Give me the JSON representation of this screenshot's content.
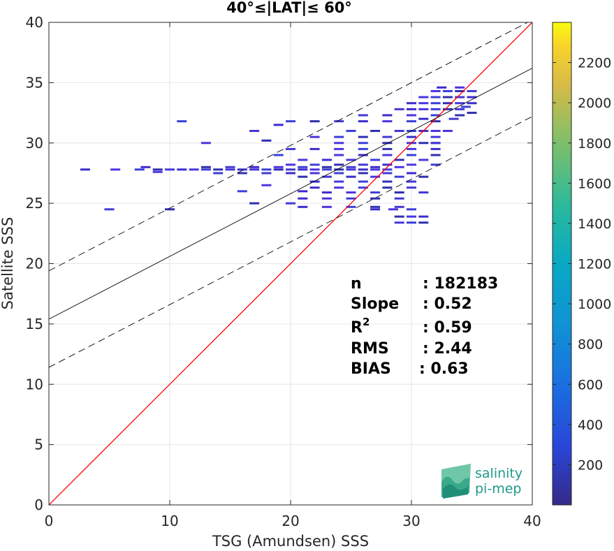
{
  "chart_data": {
    "type": "scatter",
    "title": "40°≤|LAT|≤ 60°",
    "xlabel": "TSG (Amundsen) SSS",
    "ylabel": "Satellite SSS",
    "xlim": [
      0,
      40
    ],
    "ylim": [
      0,
      40
    ],
    "xticks": [
      "0",
      "10",
      "20",
      "30",
      "40"
    ],
    "yticks": [
      "0",
      "5",
      "10",
      "15",
      "20",
      "25",
      "30",
      "35",
      "40"
    ],
    "grid": true,
    "colorbar": {
      "range": [
        0,
        2400
      ],
      "ticks": [
        "200",
        "400",
        "600",
        "800",
        "1000",
        "1200",
        "1400",
        "1600",
        "1800",
        "2000",
        "2200"
      ],
      "colormap": "parula"
    },
    "lines": [
      {
        "role": "identity",
        "color": "#ff0000",
        "slope": 1,
        "intercept": 0
      },
      {
        "role": "regression fit",
        "color": "#000000",
        "slope": 0.52,
        "intercept": 15.4
      },
      {
        "role": "upper bound",
        "color": "#000000",
        "style": "dashed",
        "slope": 0.52,
        "intercept": 19.4
      },
      {
        "role": "lower bound",
        "color": "#000000",
        "style": "dashed",
        "slope": 0.52,
        "intercept": 11.4
      }
    ],
    "stats": [
      {
        "label": "n",
        "value": ": 182183"
      },
      {
        "label": "Slope",
        "value": ": 0.52"
      },
      {
        "label": "R",
        "sup": "2",
        "value": ": 0.59"
      },
      {
        "label": "RMS",
        "value": ": 2.44"
      },
      {
        "label": "BIAS",
        "value": ": 0.63"
      }
    ],
    "points": [
      [
        3,
        27.8
      ],
      [
        5.5,
        27.8
      ],
      [
        7.5,
        27.8
      ],
      [
        9,
        27.8
      ],
      [
        10,
        27.8
      ],
      [
        11,
        27.8
      ],
      [
        12,
        27.8
      ],
      [
        13,
        27.8
      ],
      [
        14,
        27.8
      ],
      [
        15,
        27.8
      ],
      [
        16,
        27.8
      ],
      [
        17,
        27.8
      ],
      [
        18,
        27.8
      ],
      [
        19,
        27.8
      ],
      [
        20,
        27.8
      ],
      [
        21,
        27.8
      ],
      [
        22,
        27.8
      ],
      [
        23,
        27.8
      ],
      [
        24,
        27.8
      ],
      [
        25,
        27.8
      ],
      [
        26,
        27.8
      ],
      [
        27,
        27.8
      ],
      [
        28,
        27.8
      ],
      [
        13,
        28
      ],
      [
        15,
        28
      ],
      [
        17,
        28
      ],
      [
        19,
        28
      ],
      [
        21,
        28
      ],
      [
        23,
        28
      ],
      [
        25,
        28
      ],
      [
        27,
        28
      ],
      [
        29,
        28
      ],
      [
        14,
        27.5
      ],
      [
        16,
        27.5
      ],
      [
        18,
        27.5
      ],
      [
        20,
        27.5
      ],
      [
        22,
        27.5
      ],
      [
        24,
        27.5
      ],
      [
        26,
        27.5
      ],
      [
        28,
        27.5
      ],
      [
        30,
        27.5
      ],
      [
        20,
        28.2
      ],
      [
        22,
        28.2
      ],
      [
        24,
        28.2
      ],
      [
        26,
        28.2
      ],
      [
        28,
        28.2
      ],
      [
        30,
        28.2
      ],
      [
        32,
        28.2
      ],
      [
        21,
        27.2
      ],
      [
        23,
        27.2
      ],
      [
        25,
        27.2
      ],
      [
        27,
        27.2
      ],
      [
        29,
        27.2
      ],
      [
        31,
        27.2
      ],
      [
        21,
        28.6
      ],
      [
        23,
        28.6
      ],
      [
        25,
        28.6
      ],
      [
        27,
        28.6
      ],
      [
        29,
        28.6
      ],
      [
        31,
        28.6
      ],
      [
        22,
        26.8
      ],
      [
        24,
        26.8
      ],
      [
        26,
        26.8
      ],
      [
        28,
        26.8
      ],
      [
        30,
        26.8
      ],
      [
        22,
        26.3
      ],
      [
        24,
        26.3
      ],
      [
        26,
        26.3
      ],
      [
        28,
        26.3
      ],
      [
        30,
        26.3
      ],
      [
        23,
        25.9
      ],
      [
        25,
        25.9
      ],
      [
        27,
        25.9
      ],
      [
        29,
        25.9
      ],
      [
        31,
        25.9
      ],
      [
        21,
        25.4
      ],
      [
        23,
        25.4
      ],
      [
        25,
        25.4
      ],
      [
        27,
        25.4
      ],
      [
        29,
        25.4
      ],
      [
        21,
        24.7
      ],
      [
        23,
        24.7
      ],
      [
        25,
        24.7
      ],
      [
        27,
        24.7
      ],
      [
        29,
        24.7
      ],
      [
        27,
        24.5
      ],
      [
        28.5,
        24.5
      ],
      [
        30,
        24.5
      ],
      [
        29,
        23.9
      ],
      [
        30,
        23.9
      ],
      [
        31,
        23.9
      ],
      [
        29,
        23.4
      ],
      [
        30,
        23.4
      ],
      [
        31,
        23.4
      ],
      [
        24,
        29
      ],
      [
        26,
        29
      ],
      [
        28,
        29
      ],
      [
        30,
        29
      ],
      [
        32,
        29
      ],
      [
        20,
        29.5
      ],
      [
        22,
        29.5
      ],
      [
        24,
        29.5
      ],
      [
        26,
        29.5
      ],
      [
        28,
        29.5
      ],
      [
        30,
        29.5
      ],
      [
        32,
        29.5
      ],
      [
        24,
        30
      ],
      [
        26,
        30
      ],
      [
        28,
        30
      ],
      [
        30,
        30
      ],
      [
        32,
        30
      ],
      [
        22,
        30.5
      ],
      [
        24,
        30.5
      ],
      [
        26,
        30.5
      ],
      [
        28,
        30.5
      ],
      [
        30,
        30.5
      ],
      [
        32,
        30.5
      ],
      [
        25,
        31
      ],
      [
        27,
        31
      ],
      [
        29,
        31
      ],
      [
        31,
        31
      ],
      [
        33,
        31
      ],
      [
        20,
        31.8
      ],
      [
        22,
        31.8
      ],
      [
        24,
        31.8
      ],
      [
        26,
        31.8
      ],
      [
        28,
        31.8
      ],
      [
        30,
        31.8
      ],
      [
        32,
        31.8
      ],
      [
        26,
        32.3
      ],
      [
        28,
        32.3
      ],
      [
        30,
        32.3
      ],
      [
        32,
        32.3
      ],
      [
        34,
        32.3
      ],
      [
        29,
        32.8
      ],
      [
        30,
        32.8
      ],
      [
        31,
        32.8
      ],
      [
        32,
        32.8
      ],
      [
        33,
        32.8
      ],
      [
        34,
        32.8
      ],
      [
        30,
        33.3
      ],
      [
        31,
        33.3
      ],
      [
        32,
        33.3
      ],
      [
        33,
        33.3
      ],
      [
        34,
        33.3
      ],
      [
        35,
        33.3
      ],
      [
        31,
        33.8
      ],
      [
        32,
        33.8
      ],
      [
        33,
        33.8
      ],
      [
        34,
        33.8
      ],
      [
        35,
        33.8
      ],
      [
        32,
        34.3
      ],
      [
        33,
        34.3
      ],
      [
        34,
        34.3
      ],
      [
        35,
        34.3
      ],
      [
        32.5,
        34.6
      ],
      [
        34,
        34.6
      ],
      [
        19,
        29
      ],
      [
        18,
        30.2
      ],
      [
        17,
        31
      ],
      [
        19,
        31.5
      ],
      [
        13,
        30
      ],
      [
        11,
        31.8
      ],
      [
        10,
        24.5
      ],
      [
        5,
        24.5
      ],
      [
        8,
        28
      ],
      [
        9,
        27.6
      ],
      [
        16,
        26
      ],
      [
        17,
        25
      ],
      [
        20,
        25
      ],
      [
        21,
        26
      ],
      [
        18,
        26.5
      ],
      [
        34.5,
        33
      ],
      [
        35,
        32.5
      ],
      [
        33.5,
        32
      ],
      [
        31,
        32
      ],
      [
        32,
        31
      ],
      [
        30,
        31
      ],
      [
        31,
        30
      ],
      [
        32,
        30
      ]
    ]
  },
  "logo": {
    "line1": "salinity",
    "line2": "pi-mep"
  }
}
